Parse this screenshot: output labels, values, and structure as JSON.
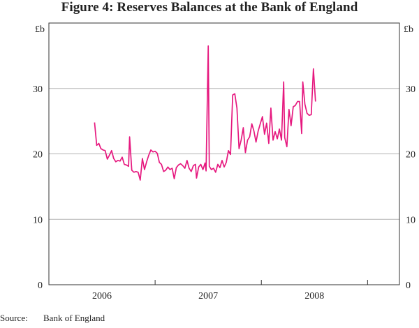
{
  "chart_data": {
    "type": "line",
    "title": "Figure 4: Reserves Balances at the Bank of England",
    "ylabel_left": "£b",
    "ylabel_right": "£b",
    "ylim": [
      0,
      40
    ],
    "yticks": [
      0,
      10,
      20,
      30
    ],
    "xlim": [
      2005.5,
      2008.8
    ],
    "xtick_labels": [
      {
        "label": "2006",
        "x": 2006.0
      },
      {
        "label": "2007",
        "x": 2007.0
      },
      {
        "label": "2008",
        "x": 2008.0
      }
    ],
    "year_boundaries": [
      2005.5,
      2006.5,
      2007.5,
      2008.5
    ],
    "gridlines": true,
    "series": [
      {
        "name": "Reserves balances",
        "color": "#e6197f",
        "points": [
          [
            2005.93,
            24.8
          ],
          [
            2005.95,
            21.3
          ],
          [
            2005.97,
            21.6
          ],
          [
            2005.99,
            20.8
          ],
          [
            2006.01,
            20.6
          ],
          [
            2006.03,
            20.5
          ],
          [
            2006.05,
            19.2
          ],
          [
            2006.07,
            19.8
          ],
          [
            2006.09,
            20.5
          ],
          [
            2006.11,
            19.3
          ],
          [
            2006.13,
            18.8
          ],
          [
            2006.15,
            19.0
          ],
          [
            2006.17,
            18.9
          ],
          [
            2006.19,
            19.5
          ],
          [
            2006.21,
            18.4
          ],
          [
            2006.23,
            18.3
          ],
          [
            2006.25,
            18.1
          ],
          [
            2006.26,
            22.6
          ],
          [
            2006.28,
            17.5
          ],
          [
            2006.3,
            17.2
          ],
          [
            2006.32,
            17.3
          ],
          [
            2006.34,
            17.2
          ],
          [
            2006.36,
            16.0
          ],
          [
            2006.38,
            19.3
          ],
          [
            2006.4,
            17.6
          ],
          [
            2006.42,
            18.8
          ],
          [
            2006.44,
            19.8
          ],
          [
            2006.46,
            20.6
          ],
          [
            2006.48,
            20.3
          ],
          [
            2006.5,
            20.4
          ],
          [
            2006.52,
            20.1
          ],
          [
            2006.54,
            18.7
          ],
          [
            2006.56,
            18.4
          ],
          [
            2006.58,
            17.3
          ],
          [
            2006.6,
            17.5
          ],
          [
            2006.62,
            18.0
          ],
          [
            2006.64,
            17.6
          ],
          [
            2006.66,
            17.8
          ],
          [
            2006.68,
            16.2
          ],
          [
            2006.7,
            17.9
          ],
          [
            2006.72,
            18.3
          ],
          [
            2006.74,
            18.5
          ],
          [
            2006.76,
            18.2
          ],
          [
            2006.78,
            17.8
          ],
          [
            2006.8,
            19.0
          ],
          [
            2006.82,
            17.8
          ],
          [
            2006.84,
            17.3
          ],
          [
            2006.86,
            18.2
          ],
          [
            2006.88,
            18.4
          ],
          [
            2006.89,
            16.3
          ],
          [
            2006.91,
            18.0
          ],
          [
            2006.93,
            18.4
          ],
          [
            2006.95,
            17.6
          ],
          [
            2006.97,
            18.6
          ],
          [
            2006.98,
            17.4
          ],
          [
            2007.0,
            36.5
          ],
          [
            2007.01,
            18.1
          ],
          [
            2007.03,
            17.6
          ],
          [
            2007.05,
            17.8
          ],
          [
            2007.07,
            17.2
          ],
          [
            2007.09,
            18.4
          ],
          [
            2007.11,
            17.9
          ],
          [
            2007.13,
            19.0
          ],
          [
            2007.15,
            18.0
          ],
          [
            2007.17,
            18.7
          ],
          [
            2007.19,
            20.5
          ],
          [
            2007.21,
            19.9
          ],
          [
            2007.23,
            29.0
          ],
          [
            2007.25,
            29.2
          ],
          [
            2007.27,
            27.0
          ],
          [
            2007.29,
            20.8
          ],
          [
            2007.31,
            22.1
          ],
          [
            2007.33,
            24.0
          ],
          [
            2007.35,
            20.2
          ],
          [
            2007.37,
            22.1
          ],
          [
            2007.39,
            22.6
          ],
          [
            2007.41,
            24.6
          ],
          [
            2007.43,
            23.5
          ],
          [
            2007.45,
            21.8
          ],
          [
            2007.47,
            23.5
          ],
          [
            2007.49,
            24.6
          ],
          [
            2007.51,
            25.7
          ],
          [
            2007.53,
            23.0
          ],
          [
            2007.55,
            24.7
          ],
          [
            2007.57,
            21.6
          ],
          [
            2007.59,
            27.0
          ],
          [
            2007.61,
            22.1
          ],
          [
            2007.63,
            23.4
          ],
          [
            2007.65,
            22.3
          ],
          [
            2007.67,
            23.8
          ],
          [
            2007.69,
            22.1
          ],
          [
            2007.71,
            31.0
          ],
          [
            2007.72,
            22.5
          ],
          [
            2007.74,
            21.1
          ],
          [
            2007.76,
            26.8
          ],
          [
            2007.78,
            24.3
          ],
          [
            2007.8,
            27.2
          ],
          [
            2007.82,
            27.4
          ],
          [
            2007.84,
            28.0
          ],
          [
            2007.86,
            28.0
          ],
          [
            2007.88,
            23.1
          ],
          [
            2007.89,
            31.0
          ],
          [
            2007.91,
            27.6
          ],
          [
            2007.93,
            26.2
          ],
          [
            2007.95,
            25.9
          ],
          [
            2007.97,
            26.0
          ],
          [
            2007.99,
            33.0
          ],
          [
            2008.01,
            28.0
          ]
        ]
      }
    ]
  },
  "source": {
    "label": "Source:",
    "text": "Bank of England"
  }
}
